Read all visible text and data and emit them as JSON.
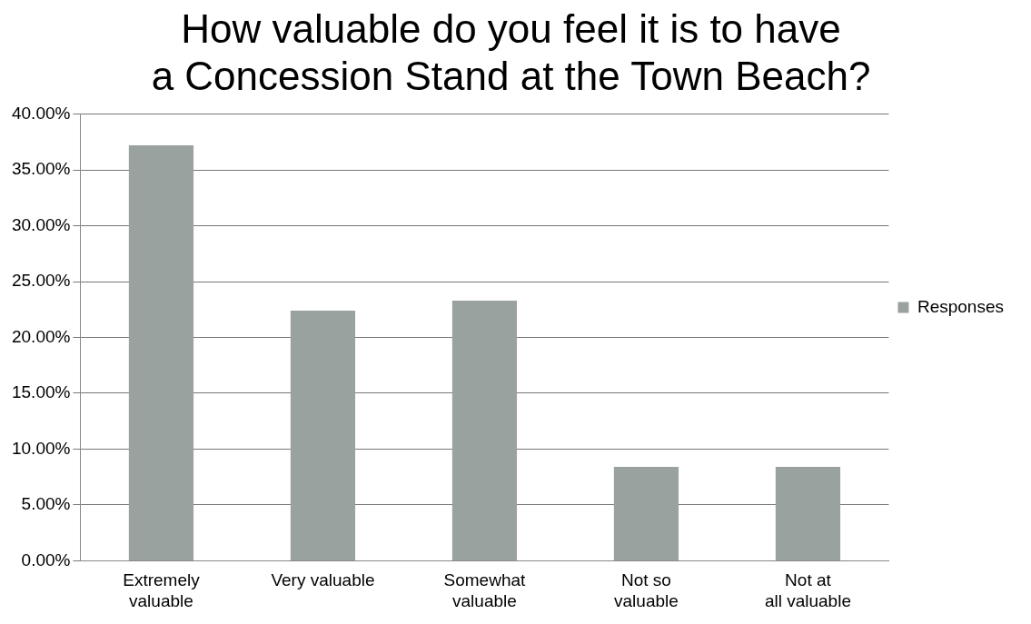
{
  "chart_data": {
    "type": "bar",
    "title": "How valuable do you feel it is to have a Concession Stand at the Town Beach?",
    "categories": [
      "Extremely valuable",
      "Very valuable",
      "Somewhat valuable",
      "Not so valuable",
      "Not at all valuable"
    ],
    "series": [
      {
        "name": "Responses",
        "color": "#9aa29f",
        "values": [
          37.2,
          22.4,
          23.3,
          8.4,
          8.4
        ]
      }
    ],
    "ylim": [
      0,
      40
    ],
    "yticks": [
      {
        "value": 0,
        "label": "0.00%"
      },
      {
        "value": 5,
        "label": "5.00%"
      },
      {
        "value": 10,
        "label": "10.00%"
      },
      {
        "value": 15,
        "label": "15.00%"
      },
      {
        "value": 20,
        "label": "20.00%"
      },
      {
        "value": 25,
        "label": "25.00%"
      },
      {
        "value": 30,
        "label": "30.00%"
      },
      {
        "value": 35,
        "label": "35.00%"
      },
      {
        "value": 40,
        "label": "40.00%"
      }
    ],
    "grid": "y",
    "legend": "right"
  }
}
